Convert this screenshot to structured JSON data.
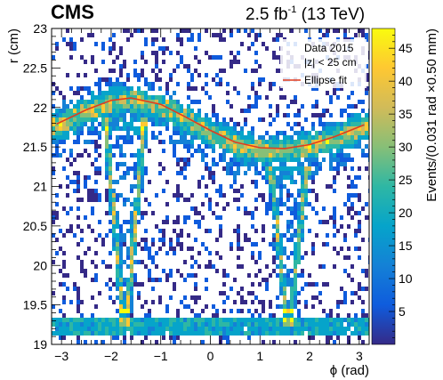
{
  "chart_data": {
    "type": "heatmap",
    "experiment": "CMS",
    "luminosity": {
      "base": "2.5 fb",
      "superscript": "-1",
      "energy": "(13 TeV)"
    },
    "xlabel": "ϕ (rad)",
    "ylabel": "r (cm)",
    "zlabel": "Events/(0.031 rad ×0.50 mm)",
    "xlim": [
      -3.2,
      3.2
    ],
    "ylim": [
      19,
      23
    ],
    "zlim": [
      0,
      48
    ],
    "x_ticks": [
      "−3",
      "−2",
      "−1",
      "0",
      "1",
      "2",
      "3"
    ],
    "x_tick_values": [
      -3,
      -2,
      -1,
      0,
      1,
      2,
      3
    ],
    "y_ticks": [
      "19",
      "19.5",
      "20",
      "20.5",
      "21",
      "21.5",
      "22",
      "22.5",
      "23"
    ],
    "y_tick_values": [
      19,
      19.5,
      20,
      20.5,
      21,
      21.5,
      22,
      22.5,
      23
    ],
    "z_ticks": [
      "5",
      "10",
      "15",
      "20",
      "25",
      "30",
      "35",
      "40",
      "45"
    ],
    "z_tick_values": [
      5,
      10,
      15,
      20,
      25,
      30,
      35,
      40,
      45
    ],
    "legend": {
      "placement": "top-right",
      "entries": [
        "Data 2015",
        "|z| < 25 cm",
        "Ellipse fit"
      ]
    },
    "series": [
      {
        "name": "Ellipse fit",
        "color": "#e03c1e",
        "description_points_phi": [
          -3.1,
          -2.5,
          -2.0,
          -1.6,
          -1.0,
          -0.5,
          0.0,
          0.5,
          1.0,
          1.5,
          2.0,
          2.5,
          3.1
        ],
        "values_r": [
          21.79,
          21.97,
          22.09,
          22.12,
          22.04,
          21.88,
          21.71,
          21.56,
          21.49,
          21.48,
          21.53,
          21.63,
          21.78
        ]
      }
    ],
    "features": {
      "beampipe_band_r": [
        19.2,
        19.3
      ],
      "left_structure_phi": [
        -2.1,
        -1.3
      ],
      "right_structure_phi": [
        1.2,
        1.95
      ],
      "structure_bottom_r": 19.4
    },
    "colors": {
      "palette": [
        "#352a87",
        "#0f5cdd",
        "#1481d6",
        "#06a4ca",
        "#2eb7a4",
        "#87bf77",
        "#d1bb59",
        "#fec832",
        "#f9fb0e"
      ],
      "fit_line": "#e03c1e"
    }
  }
}
